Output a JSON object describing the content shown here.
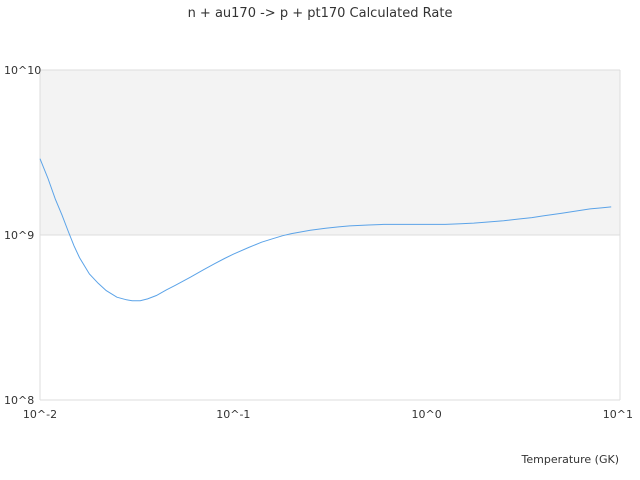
{
  "chart_data": {
    "type": "line",
    "title": "n + au170 -> p + pt170 Calculated Rate",
    "xlabel": "Temperature (GK)",
    "ylabel": "",
    "x_scale": "log",
    "y_scale": "log",
    "xlim": [
      0.01,
      10
    ],
    "ylim": [
      100000000,
      10000000000
    ],
    "x_ticks": [
      {
        "value": 0.01,
        "label": "10^-2"
      },
      {
        "value": 0.1,
        "label": "10^-1"
      },
      {
        "value": 1,
        "label": "10^0"
      },
      {
        "value": 10,
        "label": "10^1"
      }
    ],
    "y_ticks": [
      {
        "value": 100000000,
        "label": "10^8"
      },
      {
        "value": 1000000000,
        "label": "10^9"
      },
      {
        "value": 10000000000,
        "label": "10^10"
      }
    ],
    "grid": true,
    "line_color": "#5ba3e8",
    "band_color": "#f3f3f3",
    "series": [
      {
        "x": [
          0.01,
          0.011,
          0.012,
          0.013,
          0.014,
          0.015,
          0.016,
          0.018,
          0.02,
          0.022,
          0.025,
          0.028,
          0.03,
          0.033,
          0.036,
          0.04,
          0.045,
          0.05,
          0.06,
          0.07,
          0.08,
          0.09,
          0.1,
          0.12,
          0.14,
          0.16,
          0.18,
          0.2,
          0.25,
          0.3,
          0.35,
          0.4,
          0.5,
          0.6,
          0.7,
          0.8,
          0.9,
          1.0,
          1.25,
          1.5,
          1.75,
          2.0,
          2.5,
          3.0,
          3.5,
          4.0,
          5.0,
          6.0,
          7.0,
          8.0,
          9.0
        ],
        "y": [
          2900000000,
          2200000000,
          1650000000,
          1320000000,
          1050000000,
          860000000,
          730000000,
          580000000,
          510000000,
          460000000,
          420000000,
          405000000,
          400000000,
          400000000,
          410000000,
          430000000,
          465000000,
          495000000,
          555000000,
          615000000,
          670000000,
          720000000,
          765000000,
          840000000,
          905000000,
          950000000,
          990000000,
          1020000000,
          1070000000,
          1100000000,
          1120000000,
          1135000000,
          1150000000,
          1160000000,
          1160000000,
          1160000000,
          1160000000,
          1160000000,
          1160000000,
          1170000000,
          1180000000,
          1195000000,
          1220000000,
          1250000000,
          1275000000,
          1305000000,
          1355000000,
          1400000000,
          1440000000,
          1460000000,
          1480000000
        ]
      }
    ]
  }
}
